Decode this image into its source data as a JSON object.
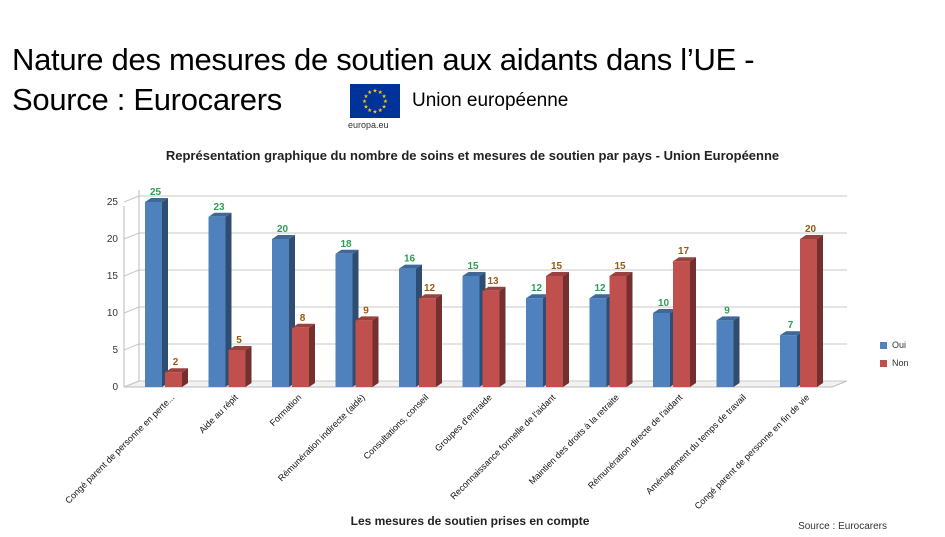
{
  "slide": {
    "title_line1": "Nature des mesures de soutien aux aidants dans l’UE -",
    "title_line2": "Source : Eurocarers"
  },
  "logo": {
    "name": "Union européenne",
    "caption": "europa.eu",
    "flag_icon": "eu-flag-icon"
  },
  "source_note": "Source : Eurocarers",
  "chart_data": {
    "type": "bar",
    "title": "Représentation graphique du nombre de soins et mesures de soutien par pays - Union Européenne",
    "xlabel": "Les mesures de soutien prises en compte",
    "ylabel": "",
    "ylim": [
      0,
      25
    ],
    "yticks": [
      0,
      5,
      10,
      15,
      20,
      25
    ],
    "grid": true,
    "legend_position": "right",
    "categories": [
      "Congé parent de personne en perte...",
      "Aide au répit",
      "Formation",
      "Rémunération indirecte (aidé)",
      "Consultations, conseil",
      "Groupes d'entraide",
      "Reconnaissance formelle de l'aidant",
      "Maintien des droits à la retraite",
      "Rémunération directe de l'aidant",
      "Aménagement du temps de travail",
      "Congé parent de personne en fin de vie"
    ],
    "series": [
      {
        "name": "Oui",
        "color": "#4F81BD",
        "label_color": "#2E9E55",
        "values": [
          25,
          23,
          20,
          18,
          16,
          15,
          12,
          12,
          10,
          9,
          7
        ]
      },
      {
        "name": "Non",
        "color": "#C0504D",
        "label_color": "#9C5A12",
        "values": [
          2,
          5,
          8,
          9,
          12,
          13,
          15,
          15,
          17,
          null,
          20
        ]
      }
    ]
  }
}
